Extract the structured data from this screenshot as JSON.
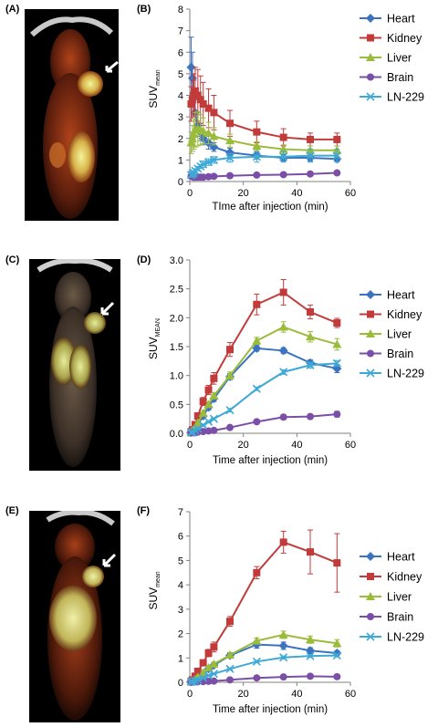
{
  "panels": {
    "a": "(A)",
    "b": "(B)",
    "c": "(C)",
    "d": "(D)",
    "e": "(E)",
    "f": "(F)"
  },
  "images": [
    {
      "name": "pet-image-a",
      "description_icon": "pet-scan-icon"
    },
    {
      "name": "pet-image-c",
      "description_icon": "pet-scan-icon"
    },
    {
      "name": "pet-image-e",
      "description_icon": "pet-scan-icon"
    }
  ],
  "chart_data": [
    {
      "type": "line",
      "xlabel": "TIme after injection (min)",
      "ylabel_main": "SUV",
      "ylabel_sub": "mean",
      "xlim": [
        0,
        60
      ],
      "ylim": [
        0,
        8
      ],
      "xticks": [
        0,
        20,
        40,
        60
      ],
      "yticks": [
        0,
        1,
        2,
        3,
        4,
        5,
        6,
        7,
        8
      ],
      "ytick_decimals": 0,
      "legend": "right",
      "series": [
        {
          "name": "Heart",
          "color": "#3b73c0",
          "marker": "diamond",
          "x": [
            0.5,
            1,
            1.5,
            2,
            3,
            4,
            5,
            7,
            9,
            15,
            25,
            35,
            45,
            55
          ],
          "y": [
            5.3,
            4.8,
            3.9,
            3.2,
            2.6,
            2.3,
            2.0,
            1.8,
            1.6,
            1.35,
            1.2,
            1.1,
            1.1,
            1.05
          ],
          "err": [
            1.4,
            1.2,
            0.8,
            0.6,
            0.5,
            0.4,
            0.3,
            0.3,
            0.2,
            0.2,
            0.15,
            0.15,
            0.15,
            0.1
          ]
        },
        {
          "name": "Kidney",
          "color": "#c23b3b",
          "marker": "square",
          "x": [
            0.5,
            1,
            1.5,
            2,
            3,
            4,
            5,
            7,
            9,
            15,
            25,
            35,
            45,
            55
          ],
          "y": [
            3.6,
            3.8,
            4.0,
            4.2,
            4.0,
            3.8,
            3.6,
            3.4,
            3.2,
            2.7,
            2.3,
            2.05,
            1.95,
            1.95
          ],
          "err": [
            0.8,
            0.9,
            1.0,
            1.1,
            1.2,
            1.1,
            1.0,
            0.9,
            0.8,
            0.6,
            0.5,
            0.4,
            0.3,
            0.3
          ]
        },
        {
          "name": "Liver",
          "color": "#9bbb3b",
          "marker": "triangle",
          "x": [
            0.5,
            1,
            1.5,
            2,
            3,
            4,
            5,
            7,
            9,
            15,
            25,
            35,
            45,
            55
          ],
          "y": [
            1.8,
            2.0,
            2.2,
            2.4,
            2.45,
            2.4,
            2.35,
            2.25,
            2.1,
            1.9,
            1.65,
            1.5,
            1.45,
            1.45
          ],
          "err": [
            0.5,
            0.6,
            0.7,
            0.8,
            0.8,
            0.7,
            0.6,
            0.5,
            0.4,
            0.3,
            0.2,
            0.2,
            0.2,
            0.2
          ]
        },
        {
          "name": "Brain",
          "color": "#7b4fa8",
          "marker": "circle",
          "x": [
            0.5,
            1,
            1.5,
            2,
            3,
            4,
            5,
            7,
            9,
            15,
            25,
            35,
            45,
            55
          ],
          "y": [
            0.25,
            0.22,
            0.2,
            0.2,
            0.2,
            0.2,
            0.2,
            0.22,
            0.24,
            0.27,
            0.3,
            0.32,
            0.35,
            0.4
          ],
          "err": [
            0.05,
            0.05,
            0.05,
            0.04,
            0.04,
            0.04,
            0.04,
            0.04,
            0.04,
            0.04,
            0.05,
            0.05,
            0.05,
            0.06
          ]
        },
        {
          "name": "LN-229",
          "color": "#3fa9d6",
          "marker": "x",
          "x": [
            0.5,
            1,
            1.5,
            2,
            3,
            4,
            5,
            7,
            9,
            15,
            25,
            35,
            45,
            55
          ],
          "y": [
            0.3,
            0.35,
            0.4,
            0.5,
            0.6,
            0.7,
            0.8,
            0.9,
            1.0,
            1.1,
            1.15,
            1.15,
            1.2,
            1.2
          ],
          "err": [
            0.1,
            0.1,
            0.1,
            0.1,
            0.1,
            0.1,
            0.15,
            0.15,
            0.15,
            0.2,
            0.25,
            0.25,
            0.3,
            0.3
          ]
        }
      ]
    },
    {
      "type": "line",
      "xlabel": "Time after injection (min)",
      "ylabel_main": "SUV",
      "ylabel_sub": "MEAN",
      "xlim": [
        0,
        60
      ],
      "ylim": [
        0,
        3
      ],
      "xticks": [
        0,
        20,
        40,
        60
      ],
      "yticks": [
        0,
        0.5,
        1,
        1.5,
        2,
        2.5,
        3
      ],
      "ytick_decimals": 1,
      "legend": "right",
      "series": [
        {
          "name": "Heart",
          "color": "#3b73c0",
          "marker": "diamond",
          "x": [
            0.5,
            1,
            2,
            3,
            5,
            7,
            9,
            15,
            25,
            35,
            45,
            55
          ],
          "y": [
            0.02,
            0.04,
            0.08,
            0.15,
            0.3,
            0.45,
            0.6,
            0.98,
            1.47,
            1.43,
            1.22,
            1.12
          ],
          "err": [
            0.01,
            0.01,
            0.02,
            0.03,
            0.04,
            0.05,
            0.05,
            0.05,
            0.05,
            0.05,
            0.05,
            0.07
          ]
        },
        {
          "name": "Kidney",
          "color": "#c23b3b",
          "marker": "square",
          "x": [
            0.5,
            1,
            2,
            3,
            5,
            7,
            9,
            15,
            25,
            35,
            45,
            55
          ],
          "y": [
            0.03,
            0.06,
            0.15,
            0.3,
            0.55,
            0.75,
            0.95,
            1.45,
            2.23,
            2.44,
            2.1,
            1.91
          ],
          "err": [
            0.01,
            0.02,
            0.04,
            0.05,
            0.07,
            0.08,
            0.1,
            0.12,
            0.18,
            0.22,
            0.12,
            0.08
          ]
        },
        {
          "name": "Liver",
          "color": "#9bbb3b",
          "marker": "triangle",
          "x": [
            0.5,
            1,
            2,
            3,
            5,
            7,
            9,
            15,
            25,
            35,
            45,
            55
          ],
          "y": [
            0.02,
            0.04,
            0.1,
            0.18,
            0.35,
            0.5,
            0.65,
            1.0,
            1.6,
            1.84,
            1.67,
            1.54
          ],
          "err": [
            0.01,
            0.01,
            0.02,
            0.03,
            0.04,
            0.05,
            0.05,
            0.06,
            0.06,
            0.09,
            0.09,
            0.1
          ]
        },
        {
          "name": "Brain",
          "color": "#7b4fa8",
          "marker": "circle",
          "x": [
            0.5,
            1,
            2,
            3,
            5,
            7,
            9,
            15,
            25,
            35,
            45,
            55
          ],
          "y": [
            0.01,
            0.01,
            0.01,
            0.02,
            0.03,
            0.04,
            0.05,
            0.1,
            0.2,
            0.28,
            0.29,
            0.33
          ],
          "err": [
            0.0,
            0.0,
            0.0,
            0.01,
            0.01,
            0.01,
            0.01,
            0.02,
            0.03,
            0.04,
            0.04,
            0.05
          ]
        },
        {
          "name": "LN-229",
          "color": "#3fa9d6",
          "marker": "x",
          "x": [
            0.5,
            1,
            2,
            3,
            5,
            7,
            9,
            15,
            25,
            35,
            45,
            55
          ],
          "y": [
            0.01,
            0.02,
            0.05,
            0.08,
            0.14,
            0.2,
            0.25,
            0.4,
            0.77,
            1.06,
            1.18,
            1.21
          ],
          "err": [
            0.0,
            0.01,
            0.01,
            0.01,
            0.02,
            0.02,
            0.02,
            0.03,
            0.03,
            0.04,
            0.05,
            0.05
          ]
        }
      ]
    },
    {
      "type": "line",
      "xlabel": "Time after injection (min)",
      "ylabel_main": "SUV",
      "ylabel_sub": "mean",
      "xlim": [
        0,
        60
      ],
      "ylim": [
        0,
        7
      ],
      "xticks": [
        0,
        20,
        40,
        60
      ],
      "yticks": [
        0,
        1,
        2,
        3,
        4,
        5,
        6,
        7
      ],
      "ytick_decimals": 0,
      "legend": "right",
      "series": [
        {
          "name": "Heart",
          "color": "#3b73c0",
          "marker": "diamond",
          "x": [
            0.5,
            1,
            2,
            3,
            5,
            7,
            9,
            15,
            25,
            35,
            45,
            55
          ],
          "y": [
            0.03,
            0.05,
            0.1,
            0.2,
            0.35,
            0.55,
            0.7,
            1.1,
            1.55,
            1.5,
            1.3,
            1.2
          ],
          "err": [
            0.01,
            0.02,
            0.03,
            0.04,
            0.05,
            0.06,
            0.08,
            0.1,
            0.15,
            0.15,
            0.12,
            0.1
          ]
        },
        {
          "name": "Kidney",
          "color": "#c23b3b",
          "marker": "square",
          "x": [
            0.5,
            1,
            2,
            3,
            5,
            7,
            9,
            15,
            25,
            35,
            45,
            55
          ],
          "y": [
            0.05,
            0.1,
            0.25,
            0.45,
            0.8,
            1.2,
            1.45,
            2.5,
            4.5,
            5.75,
            5.35,
            4.9
          ],
          "err": [
            0.02,
            0.03,
            0.05,
            0.08,
            0.1,
            0.15,
            0.2,
            0.2,
            0.25,
            0.45,
            0.9,
            1.2
          ]
        },
        {
          "name": "Liver",
          "color": "#9bbb3b",
          "marker": "triangle",
          "x": [
            0.5,
            1,
            2,
            3,
            5,
            7,
            9,
            15,
            25,
            35,
            45,
            55
          ],
          "y": [
            0.03,
            0.05,
            0.12,
            0.22,
            0.4,
            0.6,
            0.75,
            1.12,
            1.7,
            1.95,
            1.75,
            1.6
          ],
          "err": [
            0.01,
            0.02,
            0.03,
            0.04,
            0.05,
            0.06,
            0.08,
            0.1,
            0.12,
            0.15,
            0.15,
            0.15
          ]
        },
        {
          "name": "Brain",
          "color": "#7b4fa8",
          "marker": "circle",
          "x": [
            0.5,
            1,
            2,
            3,
            5,
            7,
            9,
            15,
            25,
            35,
            45,
            55
          ],
          "y": [
            0.01,
            0.01,
            0.02,
            0.02,
            0.03,
            0.04,
            0.05,
            0.1,
            0.18,
            0.22,
            0.25,
            0.23
          ],
          "err": [
            0.0,
            0.0,
            0.0,
            0.01,
            0.01,
            0.01,
            0.01,
            0.02,
            0.02,
            0.03,
            0.03,
            0.03
          ]
        },
        {
          "name": "LN-229",
          "color": "#3fa9d6",
          "marker": "x",
          "x": [
            0.5,
            1,
            2,
            3,
            5,
            7,
            9,
            15,
            25,
            35,
            45,
            55
          ],
          "y": [
            0.02,
            0.03,
            0.06,
            0.1,
            0.18,
            0.28,
            0.35,
            0.55,
            0.85,
            1.02,
            1.08,
            1.1
          ],
          "err": [
            0.01,
            0.01,
            0.01,
            0.02,
            0.02,
            0.03,
            0.03,
            0.04,
            0.05,
            0.06,
            0.06,
            0.06
          ]
        }
      ]
    }
  ]
}
